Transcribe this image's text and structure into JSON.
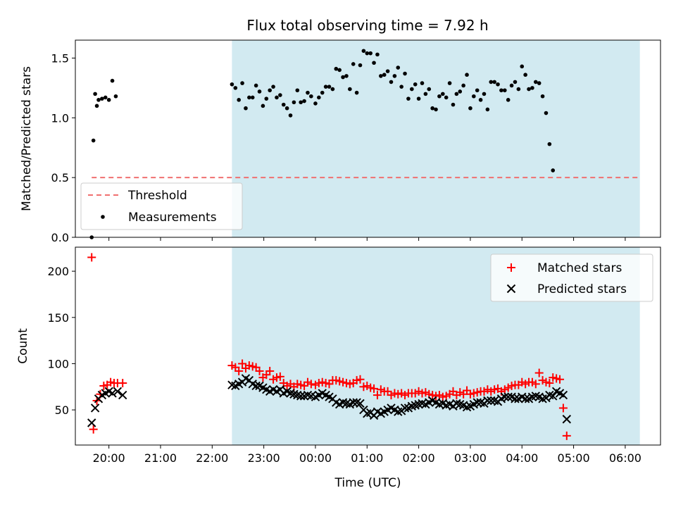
{
  "figure": {
    "title": "Flux total observing time = 7.92 h"
  },
  "colors": {
    "observing_band": "#add8e6",
    "threshold": "#f07070",
    "matched": "#ff0000",
    "predicted": "#000000",
    "measurement": "#000000"
  },
  "chart_data": [
    {
      "type": "scatter",
      "panel": "top",
      "title": "Flux total observing time = 7.92 h",
      "xlabel": "",
      "ylabel": "Matched/Predicted stars",
      "xlim": [
        "19:21",
        "06:41"
      ],
      "ylim": [
        0,
        1.65
      ],
      "yticks": [
        "0.0",
        "0.5",
        "1.0",
        "1.5"
      ],
      "grid": false,
      "legend_position": "lower-left",
      "observing_window": [
        "22:23",
        "06:17"
      ],
      "threshold": {
        "name": "Threshold",
        "value": 0.5,
        "x_range": [
          "19:40",
          "06:17"
        ],
        "style": "dashed"
      },
      "series": [
        {
          "name": "Measurements",
          "marker": "dot",
          "x": [
            "19:40",
            "19:42",
            "19:44",
            "19:46",
            "19:48",
            "19:52",
            "19:56",
            "20:00",
            "20:04",
            "20:08",
            "20:12",
            "20:16",
            "22:23",
            "22:27",
            "22:31",
            "22:35",
            "22:39",
            "22:43",
            "22:47",
            "22:51",
            "22:55",
            "22:59",
            "23:03",
            "23:07",
            "23:11",
            "23:15",
            "23:19",
            "23:23",
            "23:27",
            "23:31",
            "23:35",
            "23:39",
            "23:43",
            "23:47",
            "23:51",
            "23:55",
            "00:00",
            "00:04",
            "00:08",
            "00:12",
            "00:16",
            "00:20",
            "00:24",
            "00:28",
            "00:32",
            "00:36",
            "00:40",
            "00:44",
            "00:48",
            "00:52",
            "00:56",
            "01:00",
            "01:04",
            "01:08",
            "01:12",
            "01:16",
            "01:20",
            "01:24",
            "01:28",
            "01:32",
            "01:36",
            "01:40",
            "01:44",
            "01:48",
            "01:52",
            "01:56",
            "02:00",
            "02:04",
            "02:08",
            "02:12",
            "02:16",
            "02:20",
            "02:24",
            "02:28",
            "02:32",
            "02:36",
            "02:40",
            "02:44",
            "02:48",
            "02:52",
            "02:56",
            "03:00",
            "03:04",
            "03:08",
            "03:12",
            "03:16",
            "03:20",
            "03:24",
            "03:28",
            "03:32",
            "03:36",
            "03:40",
            "03:44",
            "03:48",
            "03:52",
            "03:56",
            "04:00",
            "04:04",
            "04:08",
            "04:12",
            "04:16",
            "04:20",
            "04:24",
            "04:28",
            "04:32",
            "04:36",
            "04:40",
            "04:44",
            "04:48",
            "04:52",
            "04:56",
            "05:00",
            "05:04",
            "05:08",
            "05:12",
            "05:16",
            "05:20",
            "05:24",
            "05:28",
            "05:32",
            "05:36",
            "05:40",
            "05:44",
            "05:48",
            "05:52",
            "05:56",
            "06:00",
            "06:04",
            "06:08",
            "06:11",
            "06:14"
          ],
          "y": [
            0.0,
            0.81,
            1.2,
            1.1,
            1.15,
            1.16,
            1.17,
            1.15,
            1.31,
            1.18,
            null,
            null,
            1.28,
            1.25,
            1.15,
            1.29,
            1.08,
            1.17,
            1.17,
            1.27,
            1.22,
            1.1,
            1.16,
            1.23,
            1.26,
            1.17,
            1.19,
            1.11,
            1.08,
            1.02,
            1.13,
            1.23,
            1.13,
            1.14,
            1.21,
            1.18,
            1.12,
            1.17,
            1.21,
            1.26,
            1.26,
            1.24,
            1.41,
            1.4,
            1.34,
            1.35,
            1.24,
            1.45,
            1.21,
            1.44,
            1.56,
            1.54,
            1.54,
            1.46,
            1.53,
            1.35,
            1.36,
            1.39,
            1.3,
            1.35,
            1.42,
            1.26,
            1.37,
            1.16,
            1.24,
            1.28,
            1.16,
            1.29,
            1.2,
            1.24,
            1.08,
            1.07,
            1.18,
            1.2,
            1.17,
            1.29,
            1.11,
            1.2,
            1.22,
            1.27,
            1.36,
            1.08,
            1.18,
            1.23,
            1.15,
            1.2,
            1.07,
            1.3,
            1.3,
            1.28,
            1.23,
            1.23,
            1.15,
            1.27,
            1.3,
            1.24,
            1.43,
            1.36,
            1.24,
            1.25,
            1.3,
            1.29,
            1.18,
            1.04,
            0.78,
            0.56,
            null,
            null,
            null,
            null,
            null,
            null,
            null,
            null,
            null,
            null,
            null,
            null,
            null,
            null,
            null,
            null,
            null,
            null,
            null,
            null,
            null,
            null,
            null,
            null,
            null
          ]
        }
      ]
    },
    {
      "type": "scatter",
      "panel": "bottom",
      "xlabel": "Time (UTC)",
      "ylabel": "Count",
      "xlim": [
        "19:21",
        "06:41"
      ],
      "ylim": [
        12,
        226
      ],
      "xticks": [
        "20:00",
        "21:00",
        "22:00",
        "23:00",
        "00:00",
        "01:00",
        "02:00",
        "03:00",
        "04:00",
        "05:00",
        "06:00"
      ],
      "yticks": [
        "50",
        "100",
        "150",
        "200"
      ],
      "grid": false,
      "legend_position": "top-right",
      "observing_window": [
        "22:23",
        "06:17"
      ],
      "series": [
        {
          "name": "Matched stars",
          "marker": "plus",
          "x": [
            "19:40",
            "19:42",
            "19:46",
            "19:50",
            "19:54",
            "19:58",
            "20:02",
            "20:06",
            "20:10",
            "20:16",
            "22:23",
            "22:27",
            "22:31",
            "22:35",
            "22:39",
            "22:43",
            "22:47",
            "22:51",
            "22:55",
            "22:59",
            "23:03",
            "23:07",
            "23:11",
            "23:15",
            "23:19",
            "23:23",
            "23:27",
            "23:31",
            "23:35",
            "23:39",
            "23:43",
            "23:47",
            "23:51",
            "23:55",
            "00:00",
            "00:04",
            "00:08",
            "00:12",
            "00:16",
            "00:20",
            "00:24",
            "00:28",
            "00:32",
            "00:36",
            "00:40",
            "00:44",
            "00:48",
            "00:52",
            "00:56",
            "01:00",
            "01:04",
            "01:08",
            "01:12",
            "01:16",
            "01:20",
            "01:24",
            "01:28",
            "01:32",
            "01:36",
            "01:40",
            "01:44",
            "01:48",
            "01:52",
            "01:56",
            "02:00",
            "02:04",
            "02:08",
            "02:12",
            "02:16",
            "02:20",
            "02:24",
            "02:28",
            "02:32",
            "02:36",
            "02:40",
            "02:44",
            "02:48",
            "02:52",
            "02:56",
            "03:00",
            "03:04",
            "03:08",
            "03:12",
            "03:16",
            "03:20",
            "03:24",
            "03:28",
            "03:32",
            "03:36",
            "03:40",
            "03:44",
            "03:48",
            "03:52",
            "03:56",
            "04:00",
            "04:04",
            "04:08",
            "04:12",
            "04:16",
            "04:20",
            "04:24",
            "04:28",
            "04:32",
            "04:36",
            "04:40",
            "04:44",
            "04:48",
            "04:52",
            "04:56",
            "05:00",
            "05:04",
            "05:08",
            "05:12",
            "05:16",
            "05:20",
            "05:24",
            "05:28",
            "05:32",
            "05:36",
            "05:40",
            "05:44",
            "05:48",
            "05:52",
            "05:56",
            "06:00",
            "06:04",
            "06:08",
            "06:11",
            "06:14"
          ],
          "y": [
            215,
            29,
            60,
            67,
            76,
            77,
            80,
            79,
            79,
            79,
            98,
            96,
            92,
            100,
            95,
            98,
            97,
            96,
            92,
            85,
            88,
            92,
            83,
            85,
            86,
            79,
            76,
            78,
            75,
            78,
            77,
            76,
            80,
            78,
            77,
            79,
            80,
            79,
            78,
            82,
            82,
            81,
            80,
            79,
            78,
            79,
            82,
            83,
            75,
            76,
            74,
            73,
            66,
            72,
            70,
            70,
            66,
            68,
            67,
            68,
            66,
            68,
            68,
            68,
            70,
            68,
            69,
            67,
            66,
            65,
            66,
            64,
            65,
            67,
            70,
            66,
            69,
            67,
            71,
            67,
            68,
            69,
            70,
            70,
            72,
            70,
            72,
            73,
            70,
            72,
            74,
            76,
            77,
            77,
            80,
            78,
            80,
            80,
            78,
            90,
            82,
            80,
            79,
            85,
            84,
            83,
            52,
            22,
            null,
            null,
            null,
            null,
            null,
            null,
            null,
            null,
            null,
            null,
            null,
            null,
            null,
            null,
            null,
            null,
            null,
            null,
            null,
            null,
            null
          ]
        },
        {
          "name": "Predicted stars",
          "marker": "x",
          "x": [
            "19:40",
            "19:44",
            "19:48",
            "19:52",
            "19:56",
            "20:00",
            "20:04",
            "20:10",
            "20:16",
            "22:23",
            "22:27",
            "22:31",
            "22:35",
            "22:39",
            "22:43",
            "22:47",
            "22:51",
            "22:55",
            "22:59",
            "23:03",
            "23:07",
            "23:11",
            "23:15",
            "23:19",
            "23:23",
            "23:27",
            "23:31",
            "23:35",
            "23:39",
            "23:43",
            "23:47",
            "23:51",
            "23:55",
            "00:00",
            "00:04",
            "00:08",
            "00:12",
            "00:16",
            "00:20",
            "00:24",
            "00:28",
            "00:32",
            "00:36",
            "00:40",
            "00:44",
            "00:48",
            "00:52",
            "00:56",
            "01:00",
            "01:04",
            "01:08",
            "01:12",
            "01:16",
            "01:20",
            "01:24",
            "01:28",
            "01:32",
            "01:36",
            "01:40",
            "01:44",
            "01:48",
            "01:52",
            "01:56",
            "02:00",
            "02:04",
            "02:08",
            "02:12",
            "02:16",
            "02:20",
            "02:24",
            "02:28",
            "02:32",
            "02:36",
            "02:40",
            "02:44",
            "02:48",
            "02:52",
            "02:56",
            "03:00",
            "03:04",
            "03:08",
            "03:12",
            "03:16",
            "03:20",
            "03:24",
            "03:28",
            "03:32",
            "03:36",
            "03:40",
            "03:44",
            "03:48",
            "03:52",
            "03:56",
            "04:00",
            "04:04",
            "04:08",
            "04:12",
            "04:16",
            "04:20",
            "04:24",
            "04:28",
            "04:32",
            "04:36",
            "04:40",
            "04:44",
            "04:48",
            "04:52",
            "04:56",
            "05:00",
            "05:04",
            "05:08",
            "05:12",
            "05:16",
            "05:20",
            "05:24",
            "05:28",
            "05:32",
            "05:36",
            "05:40",
            "05:44",
            "05:48",
            "05:52",
            "05:56",
            "06:00",
            "06:04",
            "06:08",
            "06:11",
            "06:14"
          ],
          "y": [
            36,
            52,
            62,
            66,
            68,
            70,
            68,
            70,
            66,
            77,
            76,
            78,
            80,
            84,
            82,
            78,
            76,
            76,
            74,
            72,
            70,
            72,
            70,
            72,
            68,
            70,
            68,
            67,
            66,
            65,
            65,
            66,
            65,
            64,
            66,
            68,
            66,
            64,
            62,
            58,
            56,
            58,
            57,
            56,
            58,
            58,
            57,
            50,
            46,
            47,
            44,
            48,
            46,
            48,
            50,
            52,
            50,
            48,
            49,
            52,
            52,
            54,
            55,
            56,
            57,
            56,
            58,
            60,
            58,
            56,
            57,
            55,
            56,
            54,
            57,
            56,
            55,
            53,
            54,
            56,
            58,
            58,
            57,
            60,
            60,
            60,
            59,
            62,
            64,
            64,
            64,
            62,
            62,
            64,
            62,
            62,
            64,
            65,
            64,
            62,
            63,
            66,
            65,
            70,
            68,
            66,
            40,
            null,
            null,
            null,
            null,
            null,
            null,
            null,
            null,
            null,
            null,
            null,
            null,
            null,
            null,
            null,
            null,
            null,
            null,
            null,
            null,
            null
          ]
        }
      ]
    }
  ]
}
